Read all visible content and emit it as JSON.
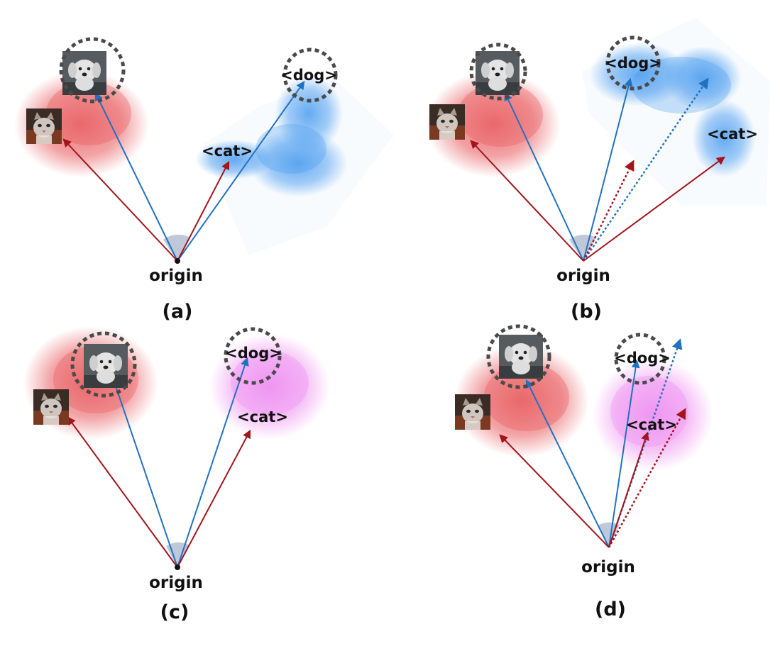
{
  "panels": [
    {
      "id": "a",
      "caption": "(a)",
      "origin_label": "origin",
      "cat_token": "<cat>",
      "dog_token": "<dog>",
      "cat_image": "cat-photo",
      "dog_image": "dog-photo"
    },
    {
      "id": "b",
      "caption": "(b)",
      "origin_label": "origin",
      "cat_token": "<cat>",
      "dog_token": "<dog>",
      "cat_image": "cat-photo",
      "dog_image": "dog-photo"
    },
    {
      "id": "c",
      "caption": "(c)",
      "origin_label": "origin",
      "cat_token": "<cat>",
      "dog_token": "<dog>",
      "cat_image": "cat-photo",
      "dog_image": "dog-photo"
    },
    {
      "id": "d",
      "caption": "(d)",
      "origin_label": "origin",
      "cat_token": "<cat>",
      "dog_token": "<dog>",
      "cat_image": "cat-photo",
      "dog_image": "dog-photo"
    }
  ],
  "colors": {
    "image_cluster": "#e8585c",
    "text_cluster_ab": "#4a9cf0",
    "text_cluster_cd": "#ee8ef0",
    "cat_arrow": "#a3141c",
    "dog_arrow": "#2271c1",
    "highlight_ring": "#4a4a4a",
    "angle_wedge": "#8a9ab8"
  }
}
